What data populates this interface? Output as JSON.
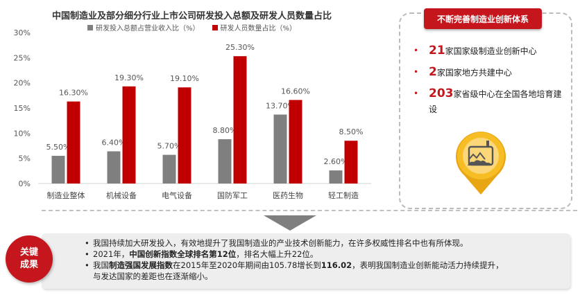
{
  "chart_data": {
    "type": "bar",
    "title": "中国制造业及部分细分行业上市公司研发投入总额及研发人员数量占比",
    "categories": [
      "制造业整体",
      "机械设备",
      "电气设备",
      "国防军工",
      "医药生物",
      "轻工制造"
    ],
    "series": [
      {
        "name": "研发投入总额占营业收入比（%）",
        "color": "#7f7f7f",
        "values": [
          5.5,
          6.4,
          5.7,
          8.8,
          13.7,
          2.6
        ],
        "labels": [
          "5.50%",
          "6.40%",
          "5.70%",
          "8.80%",
          "13.70%",
          "2.60%"
        ]
      },
      {
        "name": "研发人员数量占比（%）",
        "color": "#c00000",
        "values": [
          16.3,
          19.3,
          19.1,
          25.3,
          16.6,
          8.5
        ],
        "labels": [
          "16.30%",
          "19.30%",
          "19.10%",
          "25.30%",
          "16.60%",
          "8.50%"
        ]
      }
    ],
    "ylim": [
      0,
      30
    ],
    "yticks": [
      0,
      5,
      10,
      15,
      20,
      25,
      30
    ],
    "ytick_labels": [
      "0%",
      "5%",
      "10%",
      "15%",
      "20%",
      "25%",
      "30%"
    ],
    "grid": false,
    "legend": "top"
  },
  "panel": {
    "title": "不断完善制造业创新体系",
    "items": [
      {
        "num": "21",
        "text": "家国家级制造业创新中心"
      },
      {
        "num": "2",
        "text": "家国家地方共建中心"
      },
      {
        "num": "203",
        "text": "家省级中心在全国各地培育建设"
      }
    ],
    "icon": "factory-pin-icon",
    "accent": "#c4161c"
  },
  "key": {
    "badge_line1": "关键",
    "badge_line2": "成果",
    "point1": "我国持续加大研发投入，有效地提升了我国制造业的产业技术创新能力，在许多权威性排名中也有所体现。",
    "point2_a": "2021年，",
    "point2_b": "中国创新指数全球排名第12位",
    "point2_c": "，排名大幅上升22位。",
    "point3_a": "我国",
    "point3_b": "制造强国发展指数",
    "point3_c": "在2015年至2020年期间由105.78增长到",
    "point3_d": "116.02",
    "point3_e": "，表明我国制造业创新能动活力持续提升，",
    "point3_f": "与发达国家的差距也在逐渐缩小。"
  }
}
